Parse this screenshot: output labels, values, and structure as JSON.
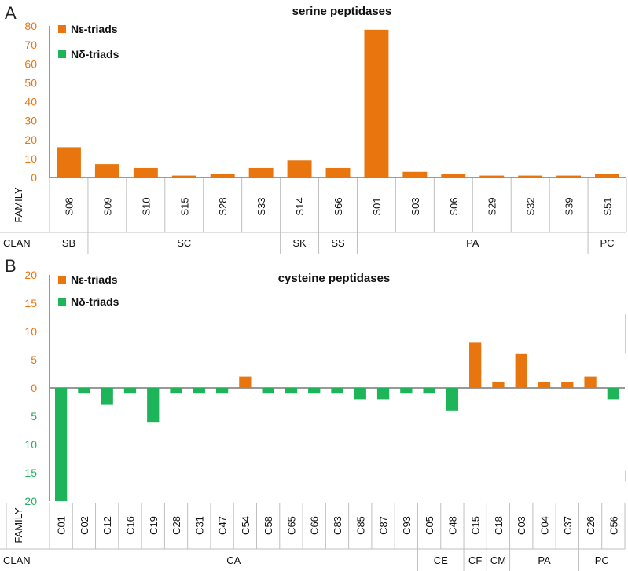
{
  "colors": {
    "ne": "#E8750E",
    "nd": "#1DB45A",
    "grid": "#bfbfbf",
    "axis": "#333333"
  },
  "chart_data": [
    {
      "panel": "A",
      "type": "bar",
      "title": "serine peptidases",
      "row_labels": {
        "family": "FAMILY",
        "clan": "CLAN"
      },
      "categories": [
        "S08",
        "S09",
        "S10",
        "S15",
        "S28",
        "S33",
        "S14",
        "S66",
        "S01",
        "S03",
        "S06",
        "S29",
        "S32",
        "S39",
        "S51"
      ],
      "series": [
        {
          "name": "Nε-triads",
          "values": [
            16,
            7,
            5,
            1,
            2,
            5,
            9,
            5,
            78,
            3,
            2,
            1,
            1,
            1,
            2
          ]
        },
        {
          "name": "Nδ-triads",
          "values": [
            0,
            0,
            0,
            0,
            0,
            0,
            0,
            0,
            0,
            0,
            0,
            0,
            0,
            0,
            0
          ]
        }
      ],
      "yticks": [
        "0",
        "10",
        "20",
        "30",
        "40",
        "50",
        "60",
        "70",
        "80"
      ],
      "ylim": [
        0,
        80
      ],
      "clans": [
        {
          "label": "SB",
          "start": 0,
          "end": 0
        },
        {
          "label": "SC",
          "start": 1,
          "end": 5
        },
        {
          "label": "SK",
          "start": 6,
          "end": 6
        },
        {
          "label": "SS",
          "start": 7,
          "end": 7
        },
        {
          "label": "PA",
          "start": 8,
          "end": 13
        },
        {
          "label": "PC",
          "start": 14,
          "end": 14
        }
      ],
      "legend": "top-left"
    },
    {
      "panel": "B",
      "type": "bar",
      "title": "cysteine peptidases",
      "row_labels": {
        "family": "FAMILY",
        "clan": "CLAN"
      },
      "categories": [
        "C01",
        "C02",
        "C12",
        "C16",
        "C19",
        "C28",
        "C31",
        "C47",
        "C54",
        "C58",
        "C65",
        "C66",
        "C83",
        "C85",
        "C87",
        "C93",
        "C05",
        "C48",
        "C15",
        "C18",
        "C03",
        "C04",
        "C37",
        "C26",
        "C56"
      ],
      "series": [
        {
          "name": "Nε-triads",
          "values": [
            0,
            0,
            0,
            0,
            0,
            0,
            0,
            0,
            2,
            0,
            0,
            0,
            0,
            0,
            0,
            0,
            0,
            0,
            8,
            1,
            6,
            1,
            1,
            2,
            0
          ]
        },
        {
          "name": "Nδ-triads",
          "values": [
            20,
            1,
            3,
            1,
            6,
            1,
            1,
            1,
            0,
            1,
            1,
            1,
            1,
            2,
            2,
            1,
            1,
            4,
            0,
            0,
            0,
            0,
            0,
            0,
            2
          ]
        }
      ],
      "yticks_up": [
        "5",
        "10",
        "15",
        "20"
      ],
      "yticks_zero": "0",
      "yticks_down": [
        "5",
        "10",
        "15",
        "20"
      ],
      "ylim": [
        -20,
        20
      ],
      "clans": [
        {
          "label": "CA",
          "start": 0,
          "end": 15
        },
        {
          "label": "CE",
          "start": 16,
          "end": 17
        },
        {
          "label": "CF",
          "start": 18,
          "end": 18
        },
        {
          "label": "CM",
          "start": 19,
          "end": 19
        },
        {
          "label": "PA",
          "start": 20,
          "end": 22
        },
        {
          "label": "PC",
          "start": 23,
          "end": 24
        }
      ],
      "legend": "top-left"
    }
  ]
}
